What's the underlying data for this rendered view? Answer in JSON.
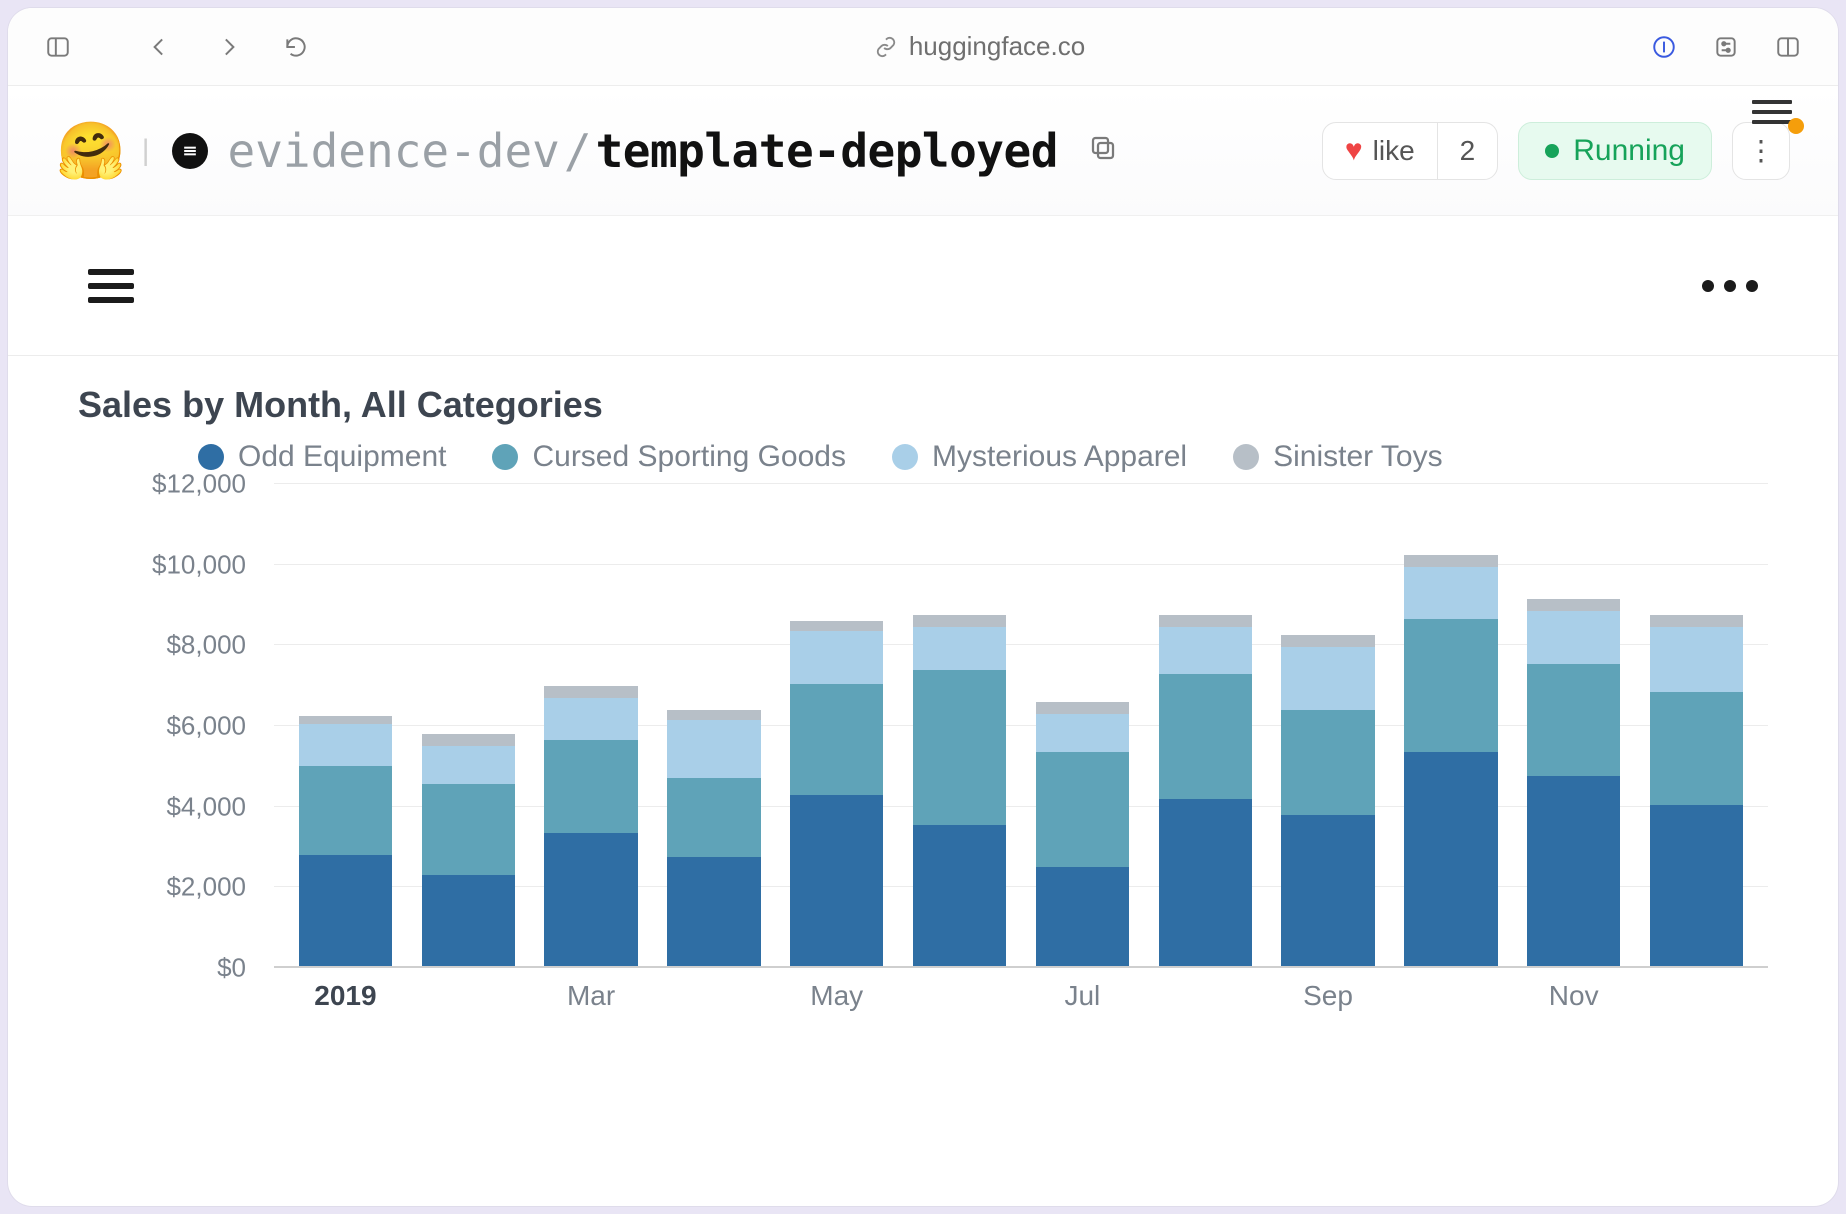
{
  "browser": {
    "url_host": "huggingface.co"
  },
  "hf": {
    "org": "evidence-dev",
    "repo": "template-deployed",
    "like_label": "like",
    "like_count": "2",
    "status_label": "Running"
  },
  "chart": {
    "type": "stacked-bar",
    "title": "Sales by Month, All Categories",
    "background_color": "#ffffff",
    "grid_color": "#ececec",
    "axis_text_color": "#7a828c",
    "title_color": "#3d4550",
    "title_fontsize": 36,
    "label_fontsize": 28,
    "bar_width_pct": 76,
    "y": {
      "min": 0,
      "max": 12000,
      "tick_step": 2000,
      "ticks": [
        "$0",
        "$2,000",
        "$4,000",
        "$6,000",
        "$8,000",
        "$10,000",
        "$12,000"
      ]
    },
    "series": [
      {
        "key": "odd",
        "label": "Odd Equipment",
        "color": "#2f6ea4"
      },
      {
        "key": "cursed",
        "label": "Cursed Sporting Goods",
        "color": "#5fa3b8"
      },
      {
        "key": "mysterious",
        "label": "Mysterious Apparel",
        "color": "#a9cfe8"
      },
      {
        "key": "sinister",
        "label": "Sinister Toys",
        "color": "#b7bfc7"
      }
    ],
    "categories": [
      "2019",
      "",
      "Mar",
      "",
      "May",
      "",
      "Jul",
      "",
      "Sep",
      "",
      "Nov",
      ""
    ],
    "category_bold": [
      true,
      false,
      false,
      false,
      false,
      false,
      false,
      false,
      false,
      false,
      false,
      false
    ],
    "data": [
      {
        "odd": 2800,
        "cursed": 2200,
        "mysterious": 1050,
        "sinister": 200
      },
      {
        "odd": 2300,
        "cursed": 2250,
        "mysterious": 950,
        "sinister": 300
      },
      {
        "odd": 3350,
        "cursed": 2300,
        "mysterious": 1050,
        "sinister": 300
      },
      {
        "odd": 2750,
        "cursed": 1950,
        "mysterious": 1450,
        "sinister": 250
      },
      {
        "odd": 4300,
        "cursed": 2750,
        "mysterious": 1300,
        "sinister": 250
      },
      {
        "odd": 3550,
        "cursed": 3850,
        "mysterious": 1050,
        "sinister": 300
      },
      {
        "odd": 2500,
        "cursed": 2850,
        "mysterious": 950,
        "sinister": 300
      },
      {
        "odd": 4200,
        "cursed": 3100,
        "mysterious": 1150,
        "sinister": 300
      },
      {
        "odd": 3800,
        "cursed": 2600,
        "mysterious": 1550,
        "sinister": 300
      },
      {
        "odd": 5350,
        "cursed": 3300,
        "mysterious": 1300,
        "sinister": 300
      },
      {
        "odd": 4750,
        "cursed": 2800,
        "mysterious": 1300,
        "sinister": 300
      },
      {
        "odd": 4050,
        "cursed": 2800,
        "mysterious": 1600,
        "sinister": 300
      }
    ]
  }
}
